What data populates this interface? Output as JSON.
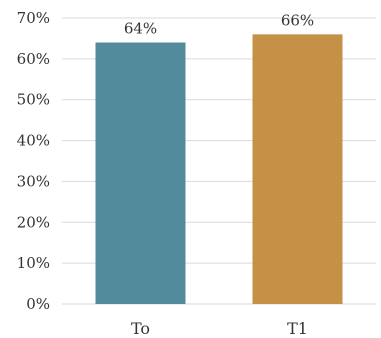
{
  "chart_data": {
    "type": "bar",
    "categories": [
      "T0",
      "T1"
    ],
    "category_labels": [
      "To",
      "T1"
    ],
    "values": [
      64,
      66
    ],
    "data_labels": [
      "64%",
      "66%"
    ],
    "colors": [
      "#528B9C",
      "#C59146"
    ],
    "title": "",
    "xlabel": "",
    "ylabel": "",
    "ylim": [
      0,
      70
    ],
    "y_ticks": [
      0,
      10,
      20,
      30,
      40,
      50,
      60,
      70
    ],
    "y_tick_labels": [
      "0%",
      "10%",
      "20%",
      "30%",
      "40%",
      "50%",
      "60%",
      "70%"
    ],
    "grid": true,
    "legend": "none"
  }
}
